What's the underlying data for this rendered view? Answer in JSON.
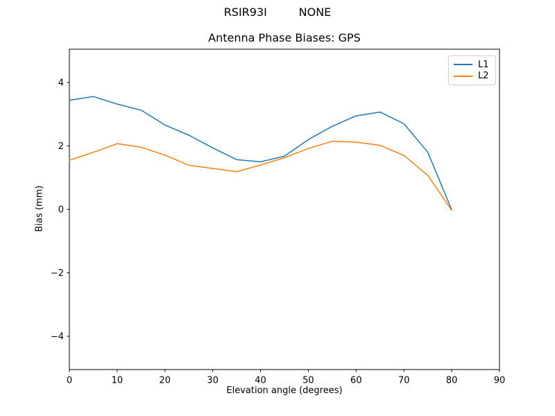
{
  "chart_data": {
    "type": "line",
    "suptitle": "RSIR93I         NONE",
    "title": "Antenna Phase Biases: GPS",
    "xlabel": "Elevation angle (degrees)",
    "ylabel": "Bias (mm)",
    "xlim": [
      0,
      90
    ],
    "ylim": [
      -5.05,
      5.05
    ],
    "xticks": [
      0,
      10,
      20,
      30,
      40,
      50,
      60,
      70,
      80,
      90
    ],
    "yticks": [
      -4,
      -2,
      0,
      2,
      4
    ],
    "ytick_labels": [
      "−4",
      "−2",
      "0",
      "2",
      "4"
    ],
    "grid": false,
    "legend_position": "upper right",
    "x": [
      0,
      5,
      10,
      15,
      20,
      25,
      30,
      35,
      40,
      45,
      50,
      55,
      60,
      65,
      70,
      75,
      80
    ],
    "series": [
      {
        "name": "L1",
        "color": "#1f77b4",
        "values": [
          3.44,
          3.56,
          3.32,
          3.13,
          2.66,
          2.34,
          1.94,
          1.57,
          1.5,
          1.68,
          2.2,
          2.62,
          2.95,
          3.07,
          2.7,
          1.8,
          -0.02
        ]
      },
      {
        "name": "L2",
        "color": "#ff7f0e",
        "values": [
          1.55,
          1.8,
          2.07,
          1.96,
          1.71,
          1.39,
          1.29,
          1.19,
          1.4,
          1.63,
          1.92,
          2.15,
          2.12,
          2.02,
          1.7,
          1.07,
          -0.03
        ]
      }
    ]
  },
  "legend": {
    "items": [
      {
        "label": "L1",
        "color": "#1f77b4"
      },
      {
        "label": "L2",
        "color": "#ff7f0e"
      }
    ]
  },
  "colors": {
    "spine": "#000000",
    "text": "#000000",
    "background": "#ffffff",
    "legend_border": "#cccccc"
  }
}
